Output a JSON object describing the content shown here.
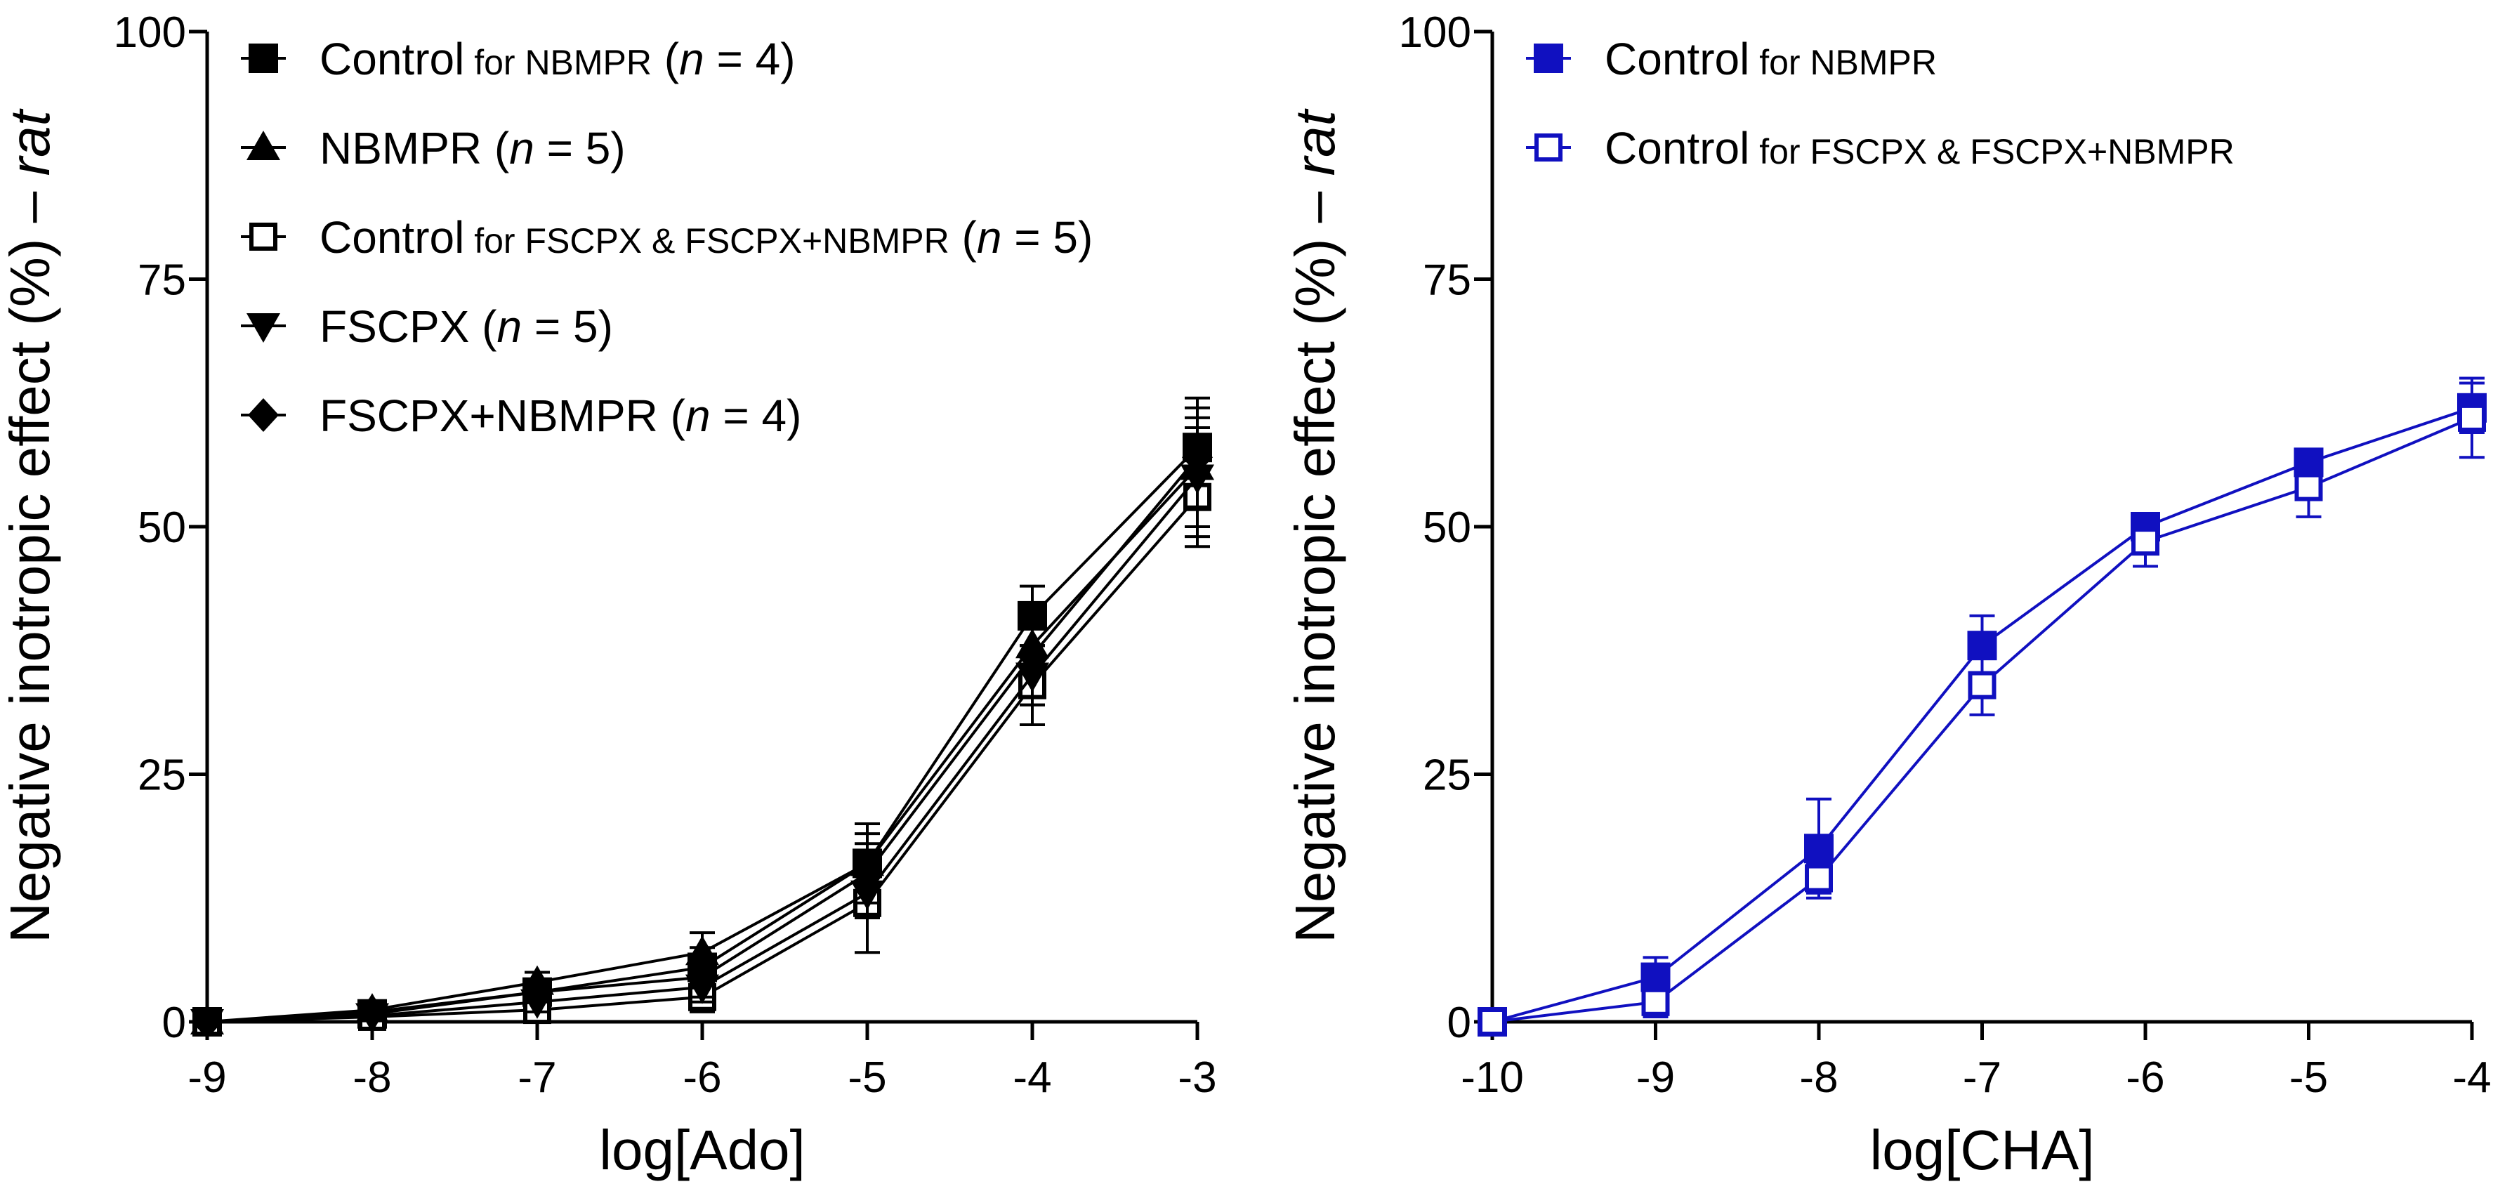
{
  "chart_data": [
    {
      "type": "line",
      "xlabel": "log[Ado]",
      "ylabel_main": "Negative inotropic effect (%) – ",
      "ylabel_italic": "rat",
      "xlim": [
        -9,
        -3
      ],
      "ylim": [
        0,
        100
      ],
      "xticks": [
        "-9",
        "-8",
        "-7",
        "-6",
        "-5",
        "-4",
        "-3"
      ],
      "yticks": [
        "0",
        "25",
        "50",
        "75",
        "100"
      ],
      "color": "#000000",
      "legend_position": "top-left",
      "series": [
        {
          "marker": "square-filled",
          "legend": {
            "name": "Control",
            "small": " for NBMPR",
            "pre": " (",
            "n_italic": "n",
            "post": " = 4)"
          },
          "x": [
            -9,
            -8,
            -7,
            -6,
            -5,
            -4,
            -3
          ],
          "y": [
            0,
            0.8,
            3.0,
            5.5,
            16.0,
            41.0,
            58.0
          ],
          "err": [
            0.3,
            0.6,
            1.2,
            2.0,
            3.0,
            3.0,
            3.0
          ]
        },
        {
          "marker": "triangle-up",
          "legend": {
            "name": "NBMPR",
            "small": "",
            "pre": " (",
            "n_italic": "n",
            "post": " = 5)"
          },
          "x": [
            -9,
            -8,
            -7,
            -6,
            -5,
            -4,
            -3
          ],
          "y": [
            0,
            1.2,
            4.0,
            7.0,
            16.0,
            38.0,
            56.0
          ],
          "err": [
            0.3,
            0.8,
            1.0,
            2.0,
            4.0,
            4.0,
            7.0
          ]
        },
        {
          "marker": "square-open",
          "legend": {
            "name": "Control",
            "small": " for FSCPX & FSCPX+NBMPR",
            "pre": " (",
            "n_italic": "n",
            "post": " = 5)"
          },
          "x": [
            -9,
            -8,
            -7,
            -6,
            -5,
            -4,
            -3
          ],
          "y": [
            0,
            0.5,
            1.2,
            2.5,
            12.0,
            34.0,
            53.0
          ],
          "err": [
            0.3,
            0.4,
            0.8,
            1.5,
            5.0,
            4.0,
            5.0
          ]
        },
        {
          "marker": "triangle-down",
          "legend": {
            "name": "FSCPX",
            "small": "",
            "pre": " (",
            "n_italic": "n",
            "post": " = 5)"
          },
          "x": [
            -9,
            -8,
            -7,
            -6,
            -5,
            -4,
            -3
          ],
          "y": [
            0,
            0.6,
            2.0,
            3.5,
            13.0,
            35.0,
            55.0
          ],
          "err": [
            0.3,
            0.5,
            1.0,
            1.5,
            2.5,
            3.0,
            5.0
          ]
        },
        {
          "marker": "diamond",
          "legend": {
            "name": "FSCPX+NBMPR",
            "small": "",
            "pre": " (",
            "n_italic": "n",
            "post": " = 4)"
          },
          "x": [
            -9,
            -8,
            -7,
            -6,
            -5,
            -4,
            -3
          ],
          "y": [
            0,
            1.0,
            3.0,
            4.5,
            15.0,
            37.0,
            57.0
          ],
          "err": [
            0.3,
            0.7,
            1.0,
            2.0,
            3.0,
            5.0,
            5.0
          ]
        }
      ]
    },
    {
      "type": "line",
      "xlabel": "log[CHA]",
      "ylabel_main": "Negative inotropic effect (%) – ",
      "ylabel_italic": "rat",
      "xlim": [
        -10,
        -4
      ],
      "ylim": [
        0,
        100
      ],
      "xticks": [
        "-10",
        "-9",
        "-8",
        "-7",
        "-6",
        "-5",
        "-4"
      ],
      "yticks": [
        "0",
        "25",
        "50",
        "75",
        "100"
      ],
      "color": "#1010c0",
      "legend_position": "top-left",
      "series": [
        {
          "marker": "square-filled",
          "legend": {
            "name": "Control",
            "small": " for NBMPR",
            "pre": "",
            "n_italic": "",
            "post": ""
          },
          "x": [
            -10,
            -9,
            -8,
            -7,
            -6,
            -5,
            -4
          ],
          "y": [
            0,
            4.5,
            17.5,
            38.0,
            50.0,
            56.5,
            62.0
          ],
          "err": [
            0.3,
            2.0,
            5.0,
            3.0,
            1.0,
            1.0,
            2.5
          ]
        },
        {
          "marker": "square-open",
          "legend": {
            "name": "Control",
            "small": " for FSCPX & FSCPX+NBMPR",
            "pre": "",
            "n_italic": "",
            "post": ""
          },
          "x": [
            -10,
            -9,
            -8,
            -7,
            -6,
            -5,
            -4
          ],
          "y": [
            0,
            2.0,
            14.5,
            34.0,
            48.5,
            54.0,
            61.0
          ],
          "err": [
            0.3,
            1.5,
            1.5,
            3.0,
            2.5,
            3.0,
            4.0
          ]
        }
      ]
    }
  ]
}
